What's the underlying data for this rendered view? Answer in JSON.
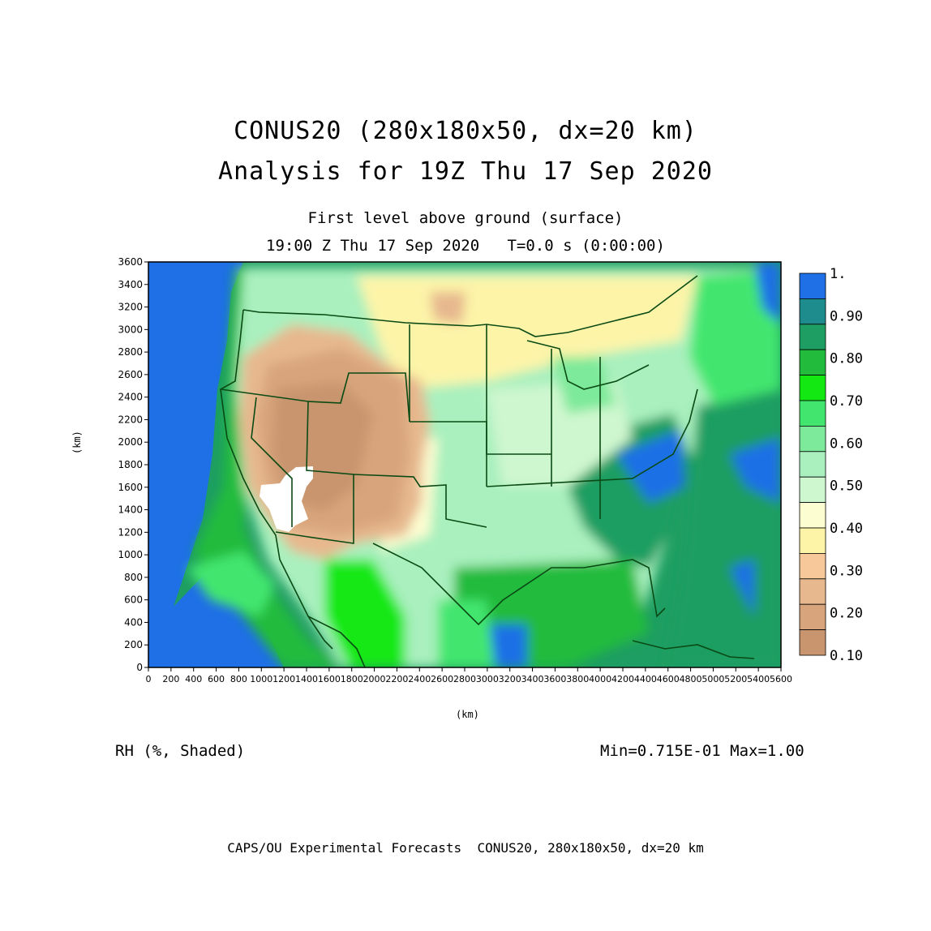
{
  "header": {
    "title_line1": "CONUS20 (280x180x50, dx=20 km)",
    "title_line2": "Analysis for 19Z Thu 17 Sep 2020",
    "subtitle_line1": "First level above ground (surface)",
    "subtitle_line2": "19:00 Z Thu 17 Sep 2020   T=0.0 s (0:00:00)"
  },
  "axes": {
    "x_label": "(km)",
    "y_label": "(km)",
    "x_range": [
      0,
      5600
    ],
    "y_range": [
      0,
      3600
    ],
    "x_ticks": [
      "0",
      "200",
      "400",
      "600",
      "800",
      "1000",
      "1200",
      "1400",
      "1600",
      "1800",
      "2000",
      "2200",
      "2400",
      "2600",
      "2800",
      "3000",
      "3200",
      "3400",
      "3600",
      "3800",
      "4000",
      "4200",
      "4400",
      "4600",
      "4800",
      "5000",
      "5200",
      "5400",
      "5600"
    ],
    "y_ticks": [
      "0",
      "200",
      "400",
      "600",
      "800",
      "1000",
      "1200",
      "1400",
      "1600",
      "1800",
      "2000",
      "2200",
      "2400",
      "2600",
      "2800",
      "3000",
      "3200",
      "3400",
      "3600"
    ]
  },
  "colorbar": {
    "labels": [
      "1.",
      "0.90",
      "0.80",
      "0.70",
      "0.60",
      "0.50",
      "0.40",
      "0.30",
      "0.20",
      "0.10"
    ],
    "colors": [
      "#1f6fe6",
      "#1e8c8c",
      "#1e9e62",
      "#22bb3c",
      "#13e813",
      "#42e66e",
      "#7de99a",
      "#a9f0be",
      "#cff7cf",
      "#fdfdd2",
      "#fdf4a8",
      "#f7c89a",
      "#e7b88e",
      "#d8a47c",
      "#c8956e"
    ]
  },
  "footer": {
    "field_label": "RH (%, Shaded)",
    "min_max": "Min=0.715E-01 Max=1.00",
    "credit": "CAPS/OU Experimental Forecasts  CONUS20, 280x180x50, dx=20 km"
  }
}
